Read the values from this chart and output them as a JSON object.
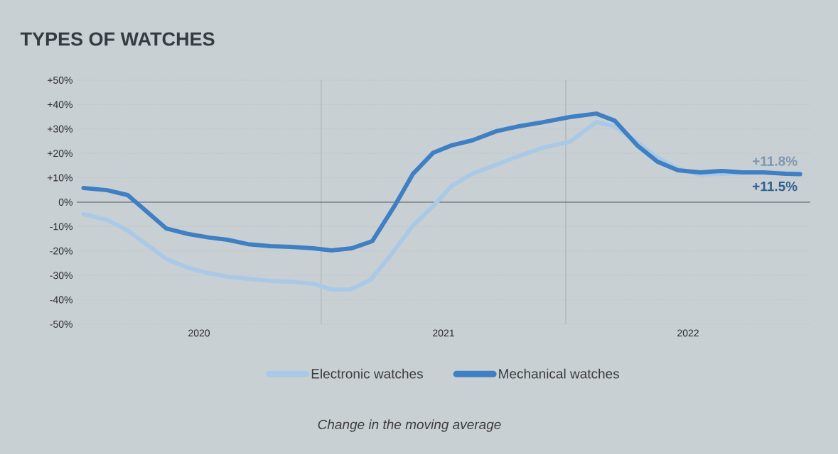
{
  "chart_data": {
    "type": "line",
    "title": "TYPES OF WATCHES",
    "xlim": [
      "2020-01-01",
      "2023-01-01"
    ],
    "xticks": [
      {
        "value": "2020-07-01",
        "label": "2020"
      },
      {
        "value": "2021-07-01",
        "label": "2021"
      },
      {
        "value": "2022-07-01",
        "label": "2022"
      }
    ],
    "ylim": [
      -50,
      50
    ],
    "yticks": [
      {
        "value": -50,
        "label": "-50%"
      },
      {
        "value": -40,
        "label": "-40%"
      },
      {
        "value": -30,
        "label": "-30%"
      },
      {
        "value": -20,
        "label": "-20%"
      },
      {
        "value": -10,
        "label": "-10%"
      },
      {
        "value": 0,
        "label": "0%"
      },
      {
        "value": 10,
        "label": "+10%"
      },
      {
        "value": 20,
        "label": "+20%"
      },
      {
        "value": 30,
        "label": "+30%"
      },
      {
        "value": 40,
        "label": "+40%"
      },
      {
        "value": 50,
        "label": "+50%"
      }
    ],
    "grid": "y",
    "legend": "bottom",
    "line_style": "solid",
    "ref_lines": [
      {
        "axis": "x",
        "value": "2021-01-01",
        "color": "#9aa3a8"
      },
      {
        "axis": "x",
        "value": "2022-01-01",
        "color": "#9aa3a8"
      },
      {
        "axis": "y",
        "value": 0,
        "color": "#555c60"
      }
    ],
    "series": [
      {
        "name": "Mechanical watches",
        "color": "#3f7fc4",
        "x": [
          "2020-01-11",
          "2020-02-16",
          "2020-03-16",
          "2020-05-13",
          "2020-06-16",
          "2020-07-16",
          "2020-08-13",
          "2020-09-13",
          "2020-10-16",
          "2020-11-16",
          "2020-12-19",
          "2021-01-16",
          "2021-02-16",
          "2021-03-16",
          "2021-04-19",
          "2021-05-16",
          "2021-06-16",
          "2021-07-13",
          "2021-08-13",
          "2021-09-19",
          "2021-10-22",
          "2021-11-28",
          "2022-01-07",
          "2022-02-16",
          "2022-03-13",
          "2022-04-16",
          "2022-05-16",
          "2022-06-16",
          "2022-07-19",
          "2022-08-19",
          "2022-09-22",
          "2022-10-22",
          "2022-11-25",
          "2022-12-16"
        ],
        "values": [
          5.8,
          4.9,
          2.9,
          -10.8,
          -13.1,
          -14.5,
          -15.4,
          -17.2,
          -18,
          -18.3,
          -18.9,
          -19.8,
          -18.9,
          -16,
          -1.5,
          11.6,
          20.3,
          23.3,
          25.3,
          29.1,
          31.1,
          32.8,
          34.9,
          36.3,
          33.4,
          23.3,
          16.6,
          13.1,
          12.2,
          12.8,
          12.2,
          12.2,
          11.6,
          11.5
        ]
      },
      {
        "name": "Electronic watches",
        "color": "#a9c9e6",
        "x": [
          "2020-01-11",
          "2020-02-16",
          "2020-03-16",
          "2020-05-13",
          "2020-06-16",
          "2020-07-16",
          "2020-08-13",
          "2020-09-13",
          "2020-10-16",
          "2020-11-16",
          "2020-12-19",
          "2021-01-16",
          "2021-02-13",
          "2021-03-13",
          "2021-04-13",
          "2021-05-16",
          "2021-06-16",
          "2021-07-13",
          "2021-08-13",
          "2021-09-19",
          "2021-10-22",
          "2021-11-28",
          "2022-01-07",
          "2022-02-16",
          "2022-03-13",
          "2022-04-16",
          "2022-05-16",
          "2022-06-16",
          "2022-07-19",
          "2022-08-19",
          "2022-09-22",
          "2022-10-22",
          "2022-11-25",
          "2022-12-16"
        ],
        "values": [
          -4.9,
          -7.3,
          -11.6,
          -23.3,
          -27,
          -29.1,
          -30.5,
          -31.4,
          -32.3,
          -32.6,
          -33.4,
          -35.8,
          -35.8,
          -32,
          -21.8,
          -9.6,
          -1.5,
          6.7,
          11.6,
          15.4,
          18.9,
          22.4,
          24.7,
          32.8,
          31.1,
          24.7,
          18.3,
          13.7,
          11.3,
          11.6,
          11.9,
          12.2,
          11.9,
          11.8
        ]
      }
    ],
    "annotations": [
      {
        "text": "+11.5%",
        "x": "2022-12-16",
        "y": 11.5
      },
      {
        "text": "+11.8%",
        "x": "2022-12-16",
        "y": 11.8
      },
      "Change in the moving average"
    ]
  }
}
